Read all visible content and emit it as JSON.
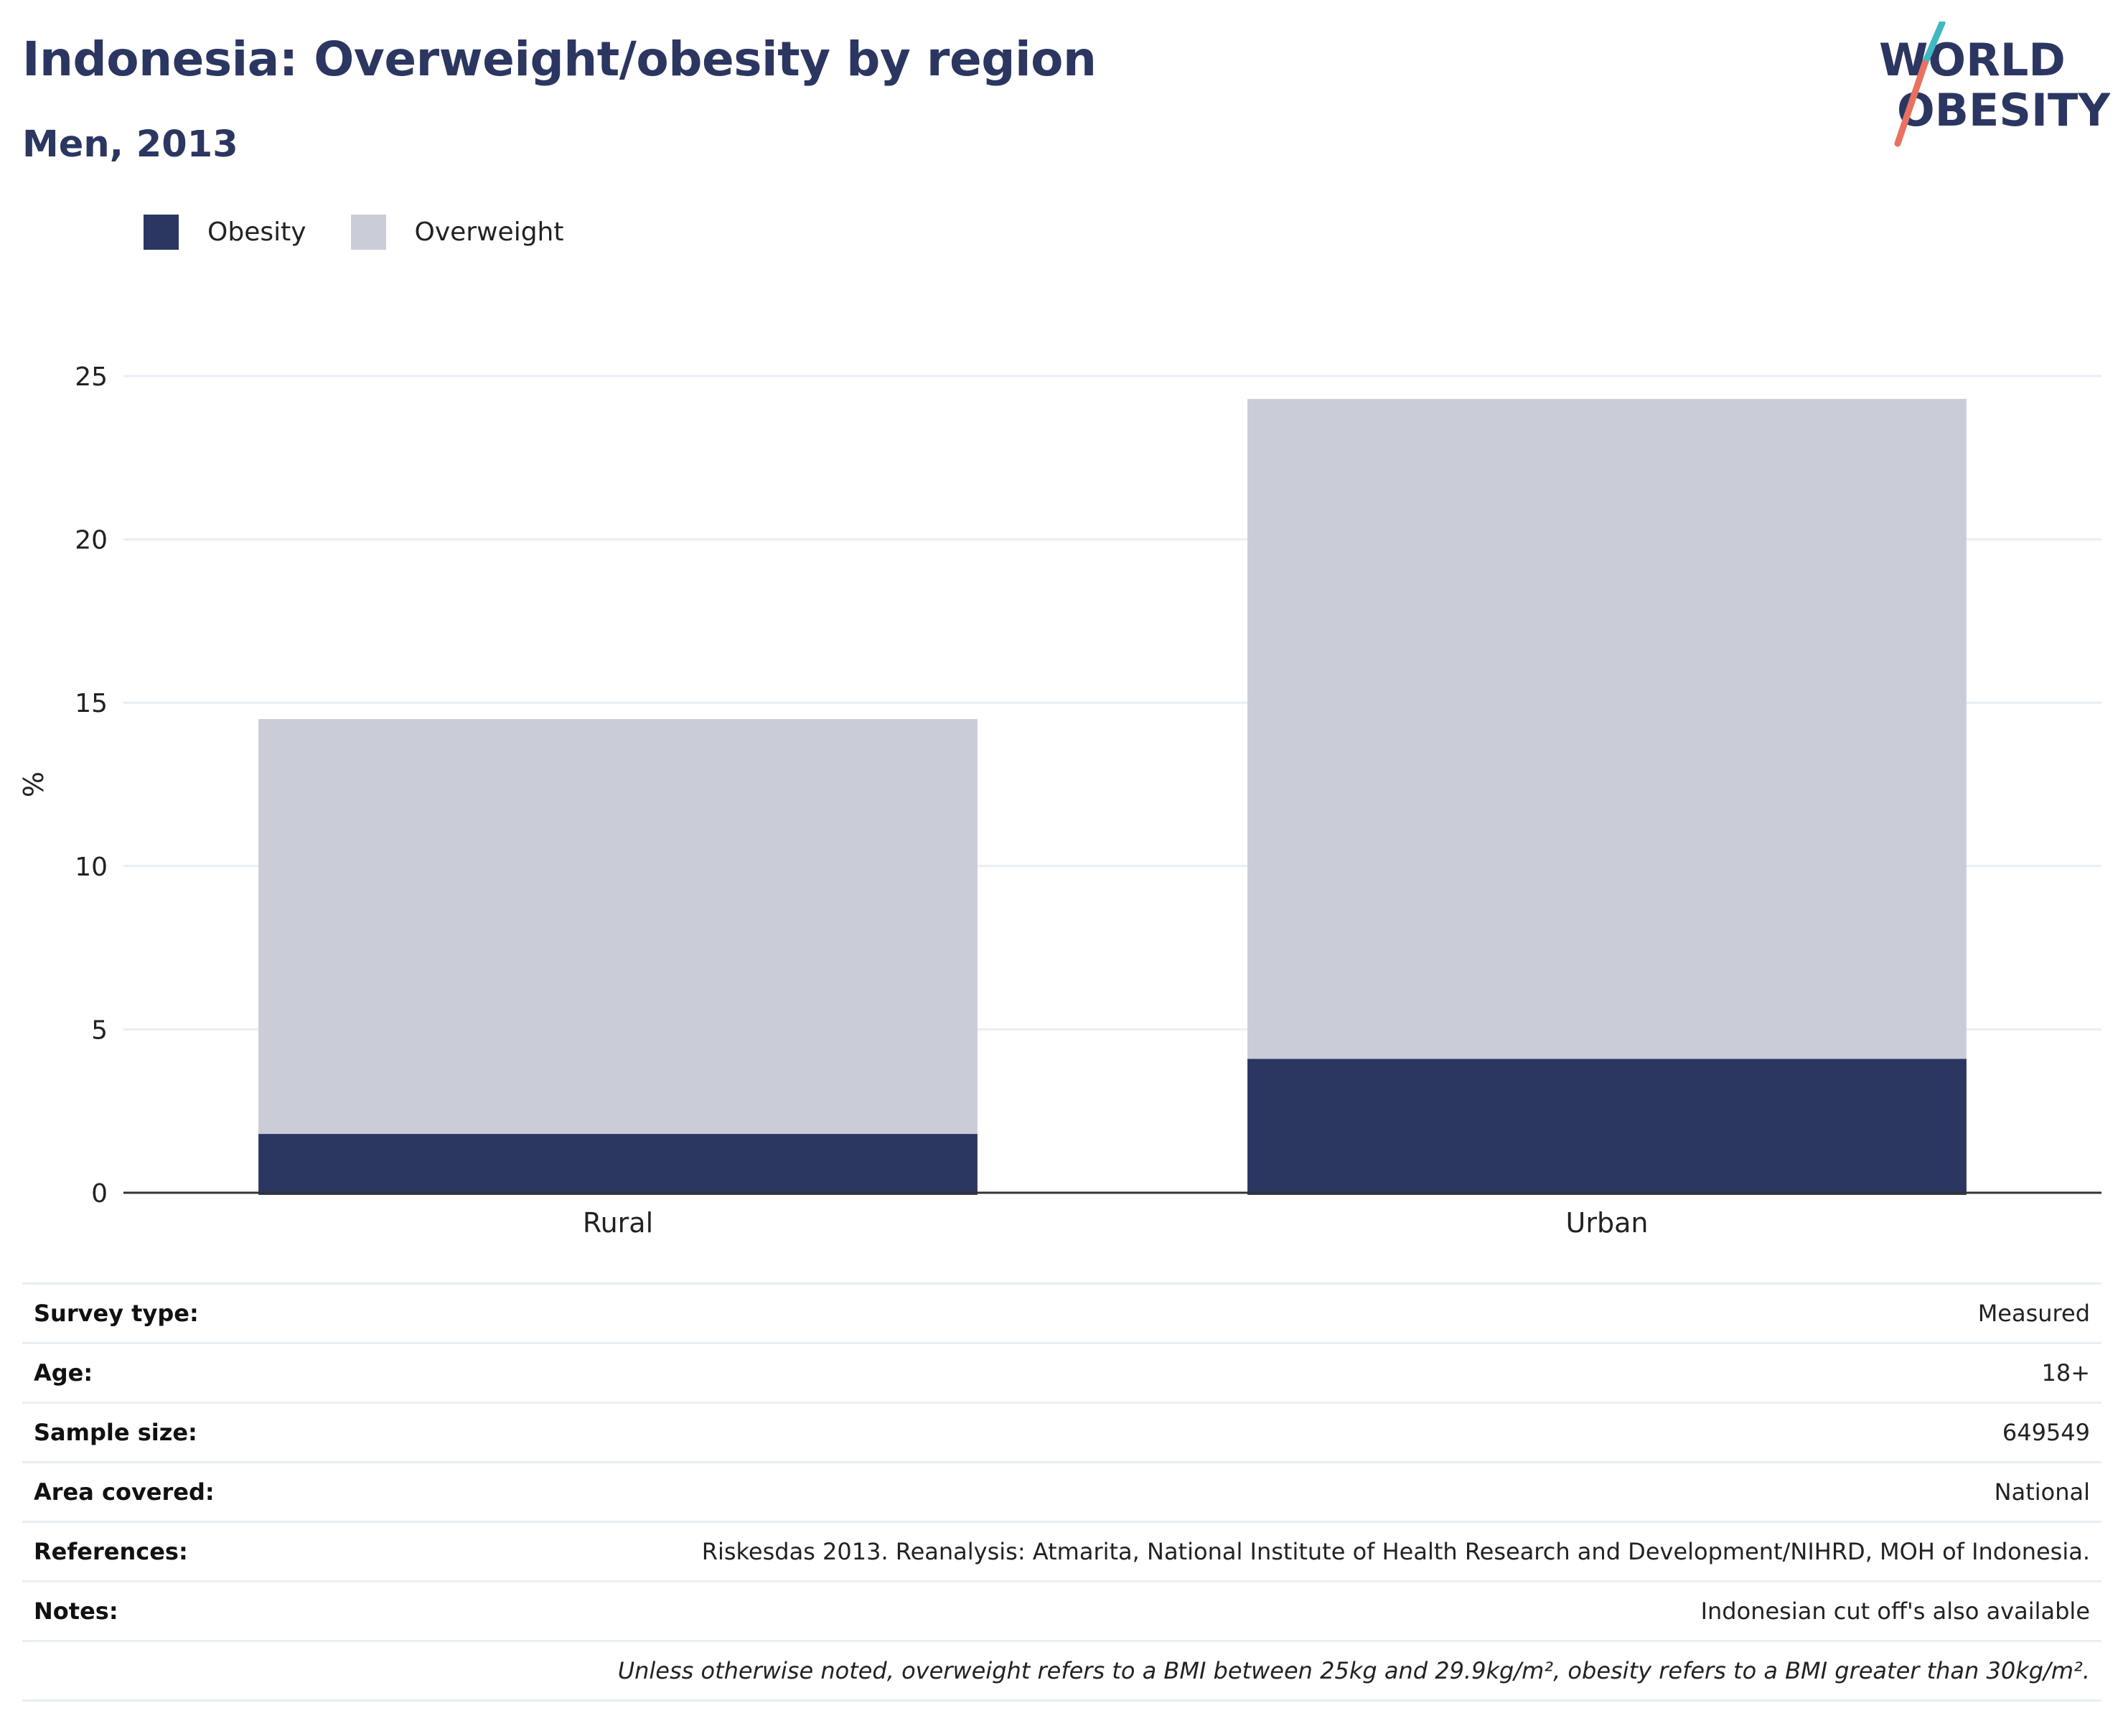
{
  "header": {
    "title": "Indonesia: Overweight/obesity by region",
    "subtitle": "Men, 2013"
  },
  "logo": {
    "line1": "WORLD",
    "line2": "OBESITY"
  },
  "legend": [
    {
      "label": "Obesity",
      "color": "#2b3661"
    },
    {
      "label": "Overweight",
      "color": "#cacdd8"
    }
  ],
  "chart_data": {
    "type": "bar",
    "stacked": true,
    "categories": [
      "Rural",
      "Urban"
    ],
    "series": [
      {
        "name": "Obesity",
        "color": "#2b3661",
        "values": [
          1.8,
          4.1
        ]
      },
      {
        "name": "Overweight",
        "color": "#cacdd8",
        "values": [
          12.7,
          20.2
        ]
      }
    ],
    "ylabel": "%",
    "ylim": [
      0,
      25
    ],
    "yticks": [
      0,
      5,
      10,
      15,
      20,
      25
    ],
    "grid": true,
    "legend_position": "top-left"
  },
  "info": {
    "rows": [
      {
        "key": "Survey type:",
        "value": "Measured"
      },
      {
        "key": "Age:",
        "value": "18+"
      },
      {
        "key": "Sample size:",
        "value": "649549"
      },
      {
        "key": "Area covered:",
        "value": "National"
      },
      {
        "key": "References:",
        "value": "Riskesdas 2013. Reanalysis: Atmarita, National Institute of Health Research and Development/NIHRD, MOH of Indonesia."
      },
      {
        "key": "Notes:",
        "value": "Indonesian cut off's also available"
      }
    ],
    "footnote": "Unless otherwise noted, overweight refers to a BMI between 25kg and 29.9kg/m², obesity refers to a BMI greater than 30kg/m²."
  }
}
